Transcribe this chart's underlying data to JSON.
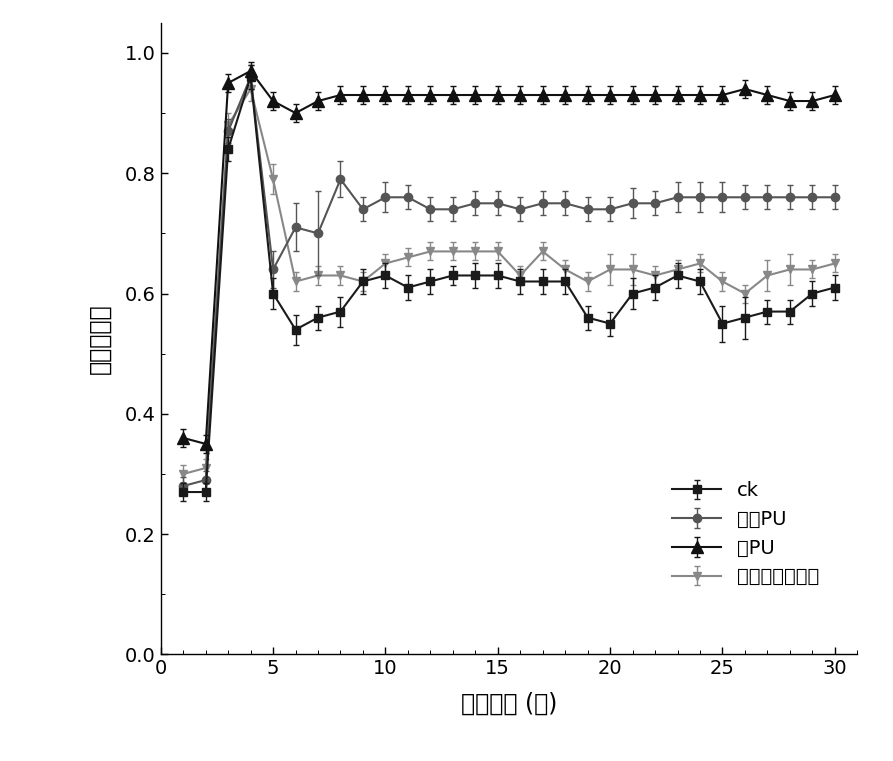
{
  "x": [
    1,
    2,
    3,
    4,
    5,
    6,
    7,
    8,
    9,
    10,
    11,
    12,
    13,
    14,
    15,
    16,
    17,
    18,
    19,
    20,
    21,
    22,
    23,
    24,
    25,
    26,
    27,
    28,
    29,
    30
  ],
  "ck": [
    0.27,
    0.27,
    0.84,
    0.96,
    0.6,
    0.54,
    0.56,
    0.57,
    0.62,
    0.63,
    0.61,
    0.62,
    0.63,
    0.63,
    0.63,
    0.62,
    0.62,
    0.62,
    0.56,
    0.55,
    0.6,
    0.61,
    0.63,
    0.62,
    0.55,
    0.56,
    0.57,
    0.57,
    0.6,
    0.61
  ],
  "pu": [
    0.28,
    0.29,
    0.87,
    0.96,
    0.64,
    0.71,
    0.7,
    0.79,
    0.74,
    0.76,
    0.76,
    0.74,
    0.74,
    0.75,
    0.75,
    0.74,
    0.75,
    0.75,
    0.74,
    0.74,
    0.75,
    0.75,
    0.76,
    0.76,
    0.76,
    0.76,
    0.76,
    0.76,
    0.76,
    0.76
  ],
  "mpu": [
    0.36,
    0.35,
    0.95,
    0.97,
    0.92,
    0.9,
    0.92,
    0.93,
    0.93,
    0.93,
    0.93,
    0.93,
    0.93,
    0.93,
    0.93,
    0.93,
    0.93,
    0.93,
    0.93,
    0.93,
    0.93,
    0.93,
    0.93,
    0.93,
    0.93,
    0.94,
    0.93,
    0.92,
    0.92,
    0.93
  ],
  "nano": [
    0.3,
    0.31,
    0.88,
    0.94,
    0.79,
    0.62,
    0.63,
    0.63,
    0.62,
    0.65,
    0.66,
    0.67,
    0.67,
    0.67,
    0.67,
    0.63,
    0.67,
    0.64,
    0.62,
    0.64,
    0.64,
    0.63,
    0.64,
    0.65,
    0.62,
    0.6,
    0.63,
    0.64,
    0.64,
    0.65
  ],
  "ck_err": [
    0.015,
    0.015,
    0.02,
    0.02,
    0.025,
    0.025,
    0.02,
    0.025,
    0.02,
    0.02,
    0.02,
    0.02,
    0.015,
    0.02,
    0.02,
    0.02,
    0.02,
    0.02,
    0.02,
    0.02,
    0.025,
    0.02,
    0.02,
    0.02,
    0.03,
    0.035,
    0.02,
    0.02,
    0.02,
    0.02
  ],
  "pu_err": [
    0.015,
    0.015,
    0.02,
    0.02,
    0.03,
    0.04,
    0.07,
    0.03,
    0.02,
    0.025,
    0.02,
    0.02,
    0.02,
    0.02,
    0.02,
    0.02,
    0.02,
    0.02,
    0.02,
    0.02,
    0.025,
    0.02,
    0.025,
    0.025,
    0.025,
    0.02,
    0.02,
    0.02,
    0.02,
    0.02
  ],
  "mpu_err": [
    0.015,
    0.015,
    0.015,
    0.015,
    0.015,
    0.015,
    0.015,
    0.015,
    0.015,
    0.015,
    0.015,
    0.015,
    0.015,
    0.015,
    0.015,
    0.015,
    0.015,
    0.015,
    0.015,
    0.015,
    0.015,
    0.015,
    0.015,
    0.015,
    0.015,
    0.015,
    0.015,
    0.015,
    0.015,
    0.015
  ],
  "nano_err": [
    0.015,
    0.015,
    0.02,
    0.02,
    0.025,
    0.015,
    0.015,
    0.015,
    0.015,
    0.015,
    0.015,
    0.015,
    0.015,
    0.015,
    0.015,
    0.015,
    0.015,
    0.015,
    0.015,
    0.025,
    0.025,
    0.015,
    0.015,
    0.015,
    0.015,
    0.015,
    0.025,
    0.025,
    0.015,
    0.015
  ],
  "xlabel": "运行天数 (天)",
  "ylabel": "总氮去除率",
  "legend_ck": "ck",
  "legend_pu": "普通PU",
  "legend_mpu": "磁PU",
  "legend_nano": "纳米四氧化三铁",
  "xlim": [
    0,
    31
  ],
  "ylim": [
    0.0,
    1.05
  ],
  "xticks": [
    0,
    5,
    10,
    15,
    20,
    25,
    30
  ],
  "yticks": [
    0.0,
    0.2,
    0.4,
    0.6,
    0.8,
    1.0
  ],
  "color_ck": "#1a1a1a",
  "color_pu": "#555555",
  "color_mpu": "#111111",
  "color_nano": "#888888",
  "linewidth": 1.5,
  "markersize": 6,
  "figure_width": 8.93,
  "figure_height": 7.61,
  "dpi": 100
}
